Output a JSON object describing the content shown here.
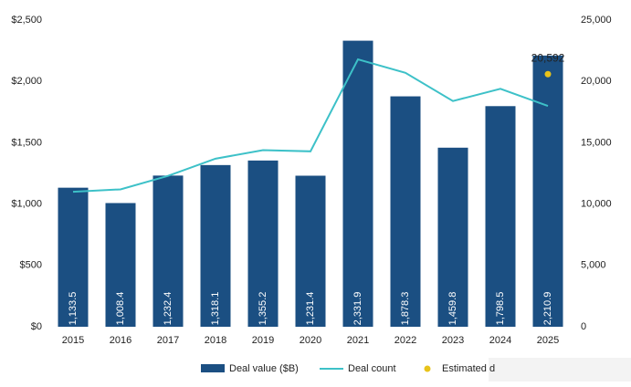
{
  "chart_data": {
    "type": "bar",
    "categories": [
      "2015",
      "2016",
      "2017",
      "2018",
      "2019",
      "2020",
      "2021",
      "2022",
      "2023",
      "2024",
      "2025"
    ],
    "series": [
      {
        "name": "Deal value ($B)",
        "type": "bar",
        "color": "#1b4f82",
        "values": [
          1133.5,
          1008.4,
          1232.4,
          1318.1,
          1355.2,
          1231.4,
          2331.9,
          1878.3,
          1459.8,
          1798.5,
          2210.9
        ],
        "value_labels": [
          "1,133.5",
          "1,008.4",
          "1,232.4",
          "1,318.1",
          "1,355.2",
          "1,231.4",
          "2,331.9",
          "1,878.3",
          "1,459.8",
          "1,798.5",
          "2,210.9"
        ]
      },
      {
        "name": "Deal count",
        "type": "line",
        "axis": "y2",
        "color": "#3dc1c8",
        "values": [
          11000,
          11200,
          12300,
          13700,
          14400,
          14300,
          21800,
          20700,
          18400,
          19400,
          18000
        ]
      },
      {
        "name": "Estimated d",
        "type": "point",
        "axis": "y2",
        "color": "#e8c31a",
        "values": [
          null,
          null,
          null,
          null,
          null,
          null,
          null,
          null,
          null,
          null,
          20592
        ],
        "value_labels": [
          null,
          null,
          null,
          null,
          null,
          null,
          null,
          null,
          null,
          null,
          "20,592"
        ]
      }
    ],
    "ylim": [
      0,
      2500
    ],
    "yticks": [
      {
        "value": 0,
        "label": "$0"
      },
      {
        "value": 500,
        "label": "$500"
      },
      {
        "value": 1000,
        "label": "$1,000"
      },
      {
        "value": 1500,
        "label": "$1,500"
      },
      {
        "value": 2000,
        "label": "$2,000"
      },
      {
        "value": 2500,
        "label": "$2,500"
      }
    ],
    "y2lim": [
      0,
      25000
    ],
    "y2ticks": [
      0,
      {
        "value": 5000,
        "label": "5,000"
      },
      {
        "value": 10000,
        "label": "10,000"
      },
      {
        "value": 15000,
        "label": "15,000"
      },
      {
        "value": 20000,
        "label": "20,000"
      },
      {
        "value": 25000,
        "label": "25,000"
      }
    ]
  }
}
